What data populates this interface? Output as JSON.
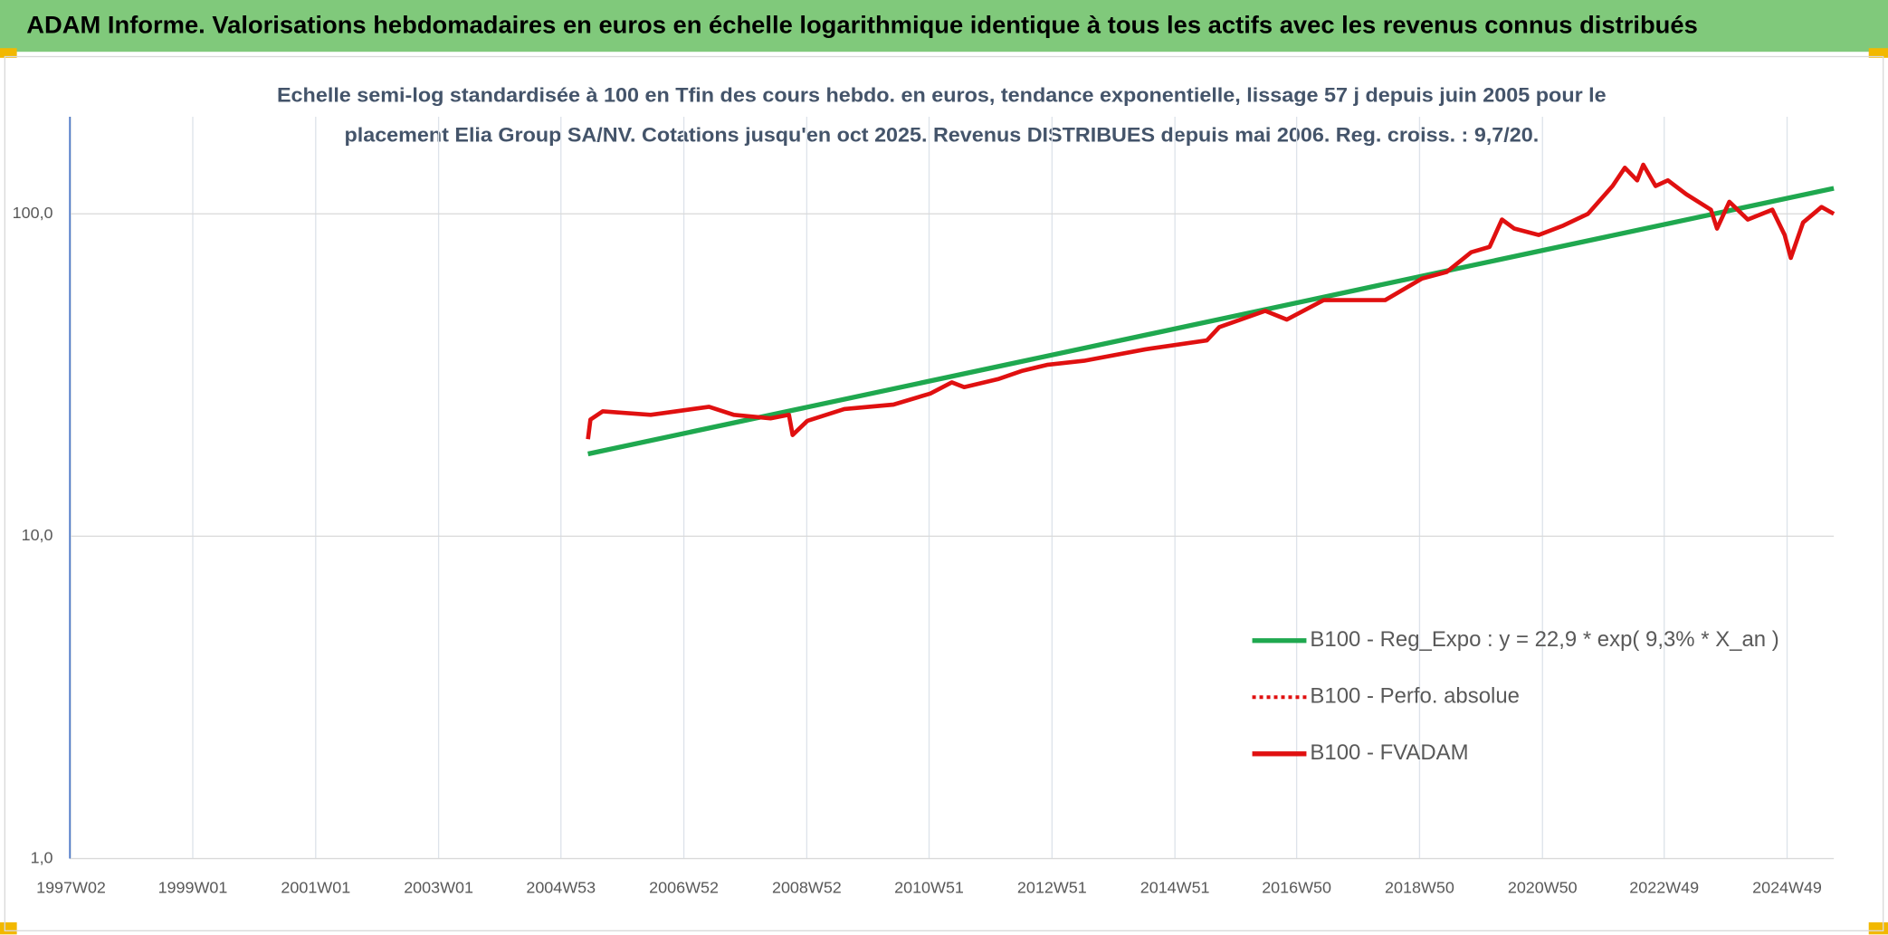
{
  "chart_data": {
    "type": "line",
    "header": "ADAM Informe. Valorisations hebdomadaires en euros en échelle logarithmique identique à tous les actifs avec les revenus connus distribués",
    "subtitle": [
      "Echelle semi-log standardisée à 100 en Tfin des cours hebdo. en euros, tendance exponentielle, lissage 57 j depuis juin 2005 pour le",
      "placement Elia Group SA/NV. Cotations jusqu'en oct 2025. Revenus DISTRIBUES depuis mai 2006. Reg. croiss. : 9,7/20."
    ],
    "log_scale": true,
    "grid": true,
    "legend": "bottom-right",
    "xlim": [
      1997.0,
      2025.7
    ],
    "xticks": [
      {
        "value": 1997.02,
        "label": "1997W02"
      },
      {
        "value": 1999.0,
        "label": "1999W01"
      },
      {
        "value": 2001.0,
        "label": "2001W01"
      },
      {
        "value": 2003.0,
        "label": "2003W01"
      },
      {
        "value": 2004.99,
        "label": "2004W53"
      },
      {
        "value": 2006.99,
        "label": "2006W52"
      },
      {
        "value": 2008.99,
        "label": "2008W52"
      },
      {
        "value": 2010.98,
        "label": "2010W51"
      },
      {
        "value": 2012.98,
        "label": "2012W51"
      },
      {
        "value": 2014.98,
        "label": "2014W51"
      },
      {
        "value": 2016.96,
        "label": "2016W50"
      },
      {
        "value": 2018.96,
        "label": "2018W50"
      },
      {
        "value": 2020.96,
        "label": "2020W50"
      },
      {
        "value": 2022.94,
        "label": "2022W49"
      },
      {
        "value": 2024.94,
        "label": "2024W49"
      }
    ],
    "ylim": [
      1,
      200
    ],
    "yticks": [
      {
        "value": 1,
        "label": "1,0"
      },
      {
        "value": 10,
        "label": "10,0"
      },
      {
        "value": 100,
        "label": "100,0"
      }
    ],
    "series": [
      {
        "name": "B100 - Reg_Expo : y = 22,9 * exp( 9,3% *  X_an )",
        "color": "#1fa84f",
        "style": "solid",
        "x": [
          2005.43,
          2025.7
        ],
        "values": [
          18,
          120
        ]
      },
      {
        "name": "B100 - Perfo. absolue",
        "color": "#e01010",
        "style": "dotted",
        "x": [],
        "values": []
      },
      {
        "name": "B100 - FVADAM",
        "color": "#e01010",
        "style": "solid",
        "x": [
          2005.43,
          2005.47,
          2005.67,
          2006.45,
          2007.4,
          2007.8,
          2008.4,
          2008.7,
          2008.76,
          2009.0,
          2009.6,
          2010.4,
          2011.0,
          2011.35,
          2011.55,
          2012.1,
          2012.5,
          2012.9,
          2013.5,
          2014.5,
          2015.5,
          2015.7,
          2016.45,
          2016.8,
          2017.4,
          2018.4,
          2019.0,
          2019.4,
          2019.8,
          2020.1,
          2020.3,
          2020.5,
          2020.9,
          2021.3,
          2021.7,
          2022.1,
          2022.3,
          2022.5,
          2022.6,
          2022.8,
          2023.0,
          2023.3,
          2023.7,
          2023.8,
          2024.0,
          2024.3,
          2024.7,
          2024.9,
          2025.0,
          2025.2,
          2025.5,
          2025.7
        ],
        "values": [
          20,
          23,
          24.4,
          23.8,
          25.2,
          23.8,
          23.2,
          23.8,
          20.6,
          22.8,
          24.8,
          25.6,
          27.7,
          30,
          29,
          30.7,
          32.6,
          34,
          35,
          38,
          40.5,
          44.5,
          50,
          47,
          54,
          54,
          63,
          66,
          76,
          79,
          96,
          90,
          86,
          92,
          100,
          122,
          139,
          127,
          142,
          122,
          127,
          115,
          103,
          90,
          109,
          96,
          103,
          86,
          73,
          94,
          105,
          100
        ]
      }
    ]
  }
}
